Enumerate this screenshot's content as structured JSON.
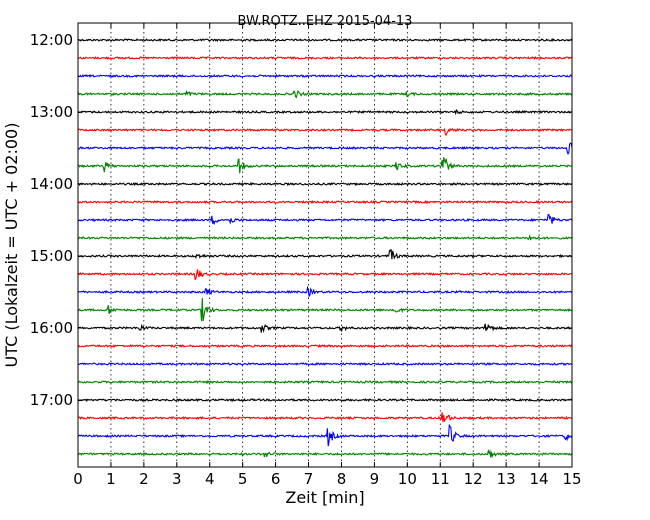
{
  "chart_data": {
    "type": "line",
    "title": "BW.ROTZ..EHZ 2015-04-13",
    "xlabel": "Zeit  [min]",
    "ylabel": "UTC (Lokalzeit = UTC + 02:00)",
    "xlim": [
      0,
      15
    ],
    "x_ticks": [
      "0",
      "1",
      "2",
      "3",
      "4",
      "5",
      "6",
      "7",
      "8",
      "9",
      "10",
      "11",
      "12",
      "13",
      "14",
      "15"
    ],
    "y_ticks": [
      "12:00",
      "13:00",
      "14:00",
      "15:00",
      "16:00",
      "17:00"
    ],
    "grid": "vertical dotted",
    "colors": {
      "black": "#000000",
      "red": "#ff0000",
      "blue": "#0000ff",
      "green": "#008000"
    },
    "series": [
      {
        "start": "12:00",
        "color": "#000000",
        "events": []
      },
      {
        "start": "12:15",
        "color": "#ff0000",
        "events": []
      },
      {
        "start": "12:30",
        "color": "#0000ff",
        "events": []
      },
      {
        "start": "12:45",
        "color": "#008000",
        "events": [
          {
            "t": 3.3,
            "amp": 0.2
          },
          {
            "t": 6.6,
            "amp": 0.3
          },
          {
            "t": 10.0,
            "amp": 0.15
          }
        ]
      },
      {
        "start": "13:00",
        "color": "#000000",
        "events": [
          {
            "t": 11.5,
            "amp": 0.1
          }
        ]
      },
      {
        "start": "13:15",
        "color": "#ff0000",
        "events": [
          {
            "t": 11.2,
            "amp": 0.3
          }
        ]
      },
      {
        "start": "13:30",
        "color": "#0000ff",
        "events": [
          {
            "t": 14.9,
            "amp": 0.5
          }
        ]
      },
      {
        "start": "13:45",
        "color": "#008000",
        "events": [
          {
            "t": 0.8,
            "amp": 0.4
          },
          {
            "t": 4.9,
            "amp": 0.5
          },
          {
            "t": 9.7,
            "amp": 0.3
          },
          {
            "t": 11.1,
            "amp": 1.0
          }
        ]
      },
      {
        "start": "14:00",
        "color": "#000000",
        "events": []
      },
      {
        "start": "14:15",
        "color": "#ff0000",
        "events": []
      },
      {
        "start": "14:30",
        "color": "#0000ff",
        "events": [
          {
            "t": 4.1,
            "amp": 0.3
          },
          {
            "t": 4.6,
            "amp": 0.3
          },
          {
            "t": 14.3,
            "amp": 0.5
          }
        ]
      },
      {
        "start": "14:45",
        "color": "#008000",
        "events": [
          {
            "t": 13.7,
            "amp": 0.25
          }
        ]
      },
      {
        "start": "15:00",
        "color": "#000000",
        "events": [
          {
            "t": 3.6,
            "amp": 0.2
          },
          {
            "t": 9.5,
            "amp": 0.5
          }
        ]
      },
      {
        "start": "15:15",
        "color": "#ff0000",
        "events": [
          {
            "t": 3.6,
            "amp": 0.5
          }
        ]
      },
      {
        "start": "15:30",
        "color": "#0000ff",
        "events": [
          {
            "t": 3.9,
            "amp": 0.3
          },
          {
            "t": 7.0,
            "amp": 0.3
          }
        ]
      },
      {
        "start": "15:45",
        "color": "#008000",
        "events": [
          {
            "t": 0.9,
            "amp": 0.4
          },
          {
            "t": 3.8,
            "amp": 0.8
          },
          {
            "t": 9.6,
            "amp": 0.3
          }
        ]
      },
      {
        "start": "16:00",
        "color": "#000000",
        "events": [
          {
            "t": 1.9,
            "amp": 0.2
          },
          {
            "t": 5.6,
            "amp": 0.3
          },
          {
            "t": 8.0,
            "amp": 0.2
          },
          {
            "t": 12.4,
            "amp": 0.5
          }
        ]
      },
      {
        "start": "16:15",
        "color": "#ff0000",
        "events": []
      },
      {
        "start": "16:30",
        "color": "#0000ff",
        "events": []
      },
      {
        "start": "16:45",
        "color": "#008000",
        "events": []
      },
      {
        "start": "17:00",
        "color": "#000000",
        "events": []
      },
      {
        "start": "17:15",
        "color": "#ff0000",
        "events": [
          {
            "t": 11.1,
            "amp": 0.6
          }
        ]
      },
      {
        "start": "17:30",
        "color": "#0000ff",
        "events": [
          {
            "t": 7.6,
            "amp": 0.7
          },
          {
            "t": 11.3,
            "amp": 0.8
          },
          {
            "t": 14.8,
            "amp": 0.3
          }
        ]
      },
      {
        "start": "17:45",
        "color": "#008000",
        "events": [
          {
            "t": 5.7,
            "amp": 0.25
          },
          {
            "t": 12.5,
            "amp": 0.3
          }
        ]
      }
    ]
  }
}
